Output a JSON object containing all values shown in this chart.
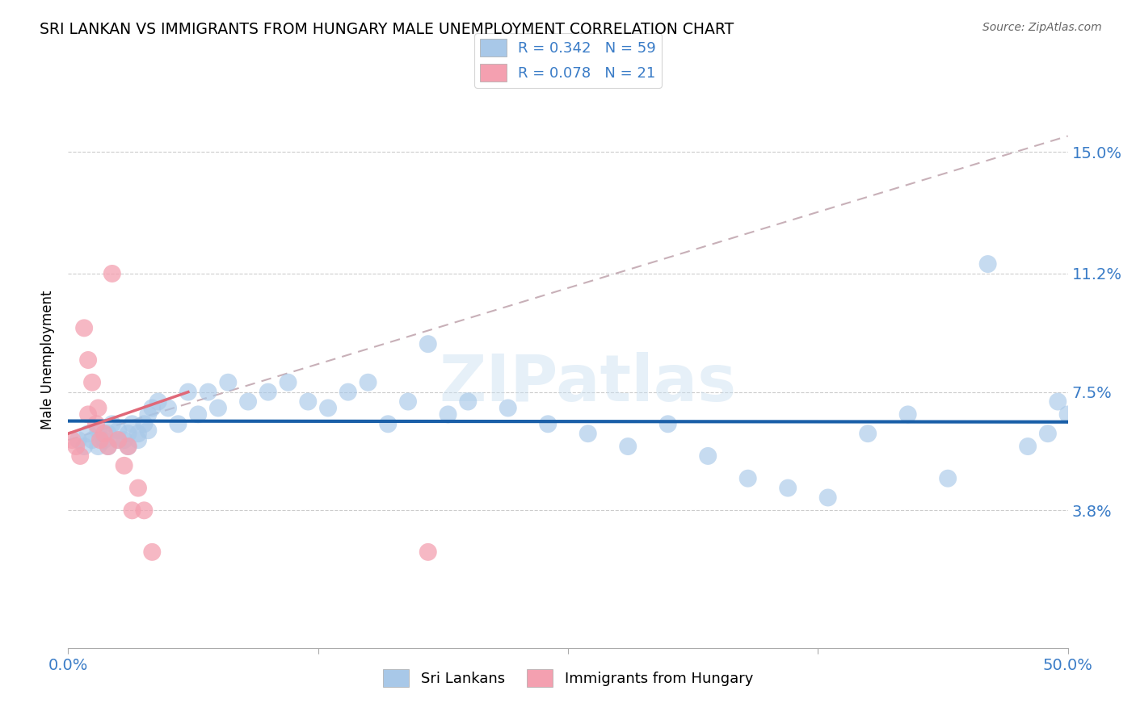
{
  "title": "SRI LANKAN VS IMMIGRANTS FROM HUNGARY MALE UNEMPLOYMENT CORRELATION CHART",
  "source": "Source: ZipAtlas.com",
  "ylabel": "Male Unemployment",
  "xlabel": "",
  "xlim": [
    0.0,
    0.5
  ],
  "ylim": [
    -0.005,
    0.175
  ],
  "yticks": [
    0.038,
    0.075,
    0.112,
    0.15
  ],
  "ytick_labels": [
    "3.8%",
    "7.5%",
    "11.2%",
    "15.0%"
  ],
  "xticks": [
    0.0,
    0.125,
    0.25,
    0.375,
    0.5
  ],
  "xtick_labels": [
    "0.0%",
    "",
    "",
    "",
    "50.0%"
  ],
  "legend_R1": "R = 0.342",
  "legend_N1": "N = 59",
  "legend_R2": "R = 0.078",
  "legend_N2": "N = 21",
  "color_blue": "#a8c8e8",
  "color_pink": "#f4a0b0",
  "color_blue_line": "#1a5fa8",
  "color_pink_line": "#e06878",
  "color_dashed": "#d0a0a8",
  "color_blue_text": "#3a7cc7",
  "color_label_text": "#3a7cc7",
  "watermark": "ZIPatlas",
  "sri_lankans_x": [
    0.005,
    0.008,
    0.01,
    0.012,
    0.015,
    0.015,
    0.018,
    0.02,
    0.02,
    0.022,
    0.025,
    0.025,
    0.028,
    0.03,
    0.03,
    0.032,
    0.035,
    0.035,
    0.038,
    0.04,
    0.04,
    0.042,
    0.045,
    0.05,
    0.055,
    0.06,
    0.065,
    0.07,
    0.075,
    0.08,
    0.09,
    0.1,
    0.11,
    0.12,
    0.13,
    0.14,
    0.15,
    0.16,
    0.17,
    0.18,
    0.19,
    0.2,
    0.22,
    0.24,
    0.26,
    0.28,
    0.3,
    0.32,
    0.34,
    0.36,
    0.38,
    0.4,
    0.42,
    0.44,
    0.46,
    0.48,
    0.49,
    0.495,
    0.5
  ],
  "sri_lankans_y": [
    0.06,
    0.058,
    0.062,
    0.06,
    0.058,
    0.063,
    0.06,
    0.062,
    0.058,
    0.065,
    0.06,
    0.063,
    0.06,
    0.062,
    0.058,
    0.065,
    0.06,
    0.062,
    0.065,
    0.068,
    0.063,
    0.07,
    0.072,
    0.07,
    0.065,
    0.075,
    0.068,
    0.075,
    0.07,
    0.078,
    0.072,
    0.075,
    0.078,
    0.072,
    0.07,
    0.075,
    0.078,
    0.065,
    0.072,
    0.09,
    0.068,
    0.072,
    0.07,
    0.065,
    0.062,
    0.058,
    0.065,
    0.055,
    0.048,
    0.045,
    0.042,
    0.062,
    0.068,
    0.048,
    0.115,
    0.058,
    0.062,
    0.072,
    0.068
  ],
  "hungary_x": [
    0.002,
    0.004,
    0.006,
    0.008,
    0.01,
    0.01,
    0.012,
    0.014,
    0.015,
    0.016,
    0.018,
    0.02,
    0.022,
    0.025,
    0.028,
    0.03,
    0.032,
    0.035,
    0.038,
    0.042,
    0.18
  ],
  "hungary_y": [
    0.06,
    0.058,
    0.055,
    0.095,
    0.085,
    0.068,
    0.078,
    0.065,
    0.07,
    0.06,
    0.062,
    0.058,
    0.112,
    0.06,
    0.052,
    0.058,
    0.038,
    0.045,
    0.038,
    0.025,
    0.025
  ],
  "hungary_line_x0": 0.0,
  "hungary_line_x1": 0.5,
  "hungary_line_y0": 0.062,
  "hungary_line_y1": 0.075,
  "dashed_line_x0": 0.0,
  "dashed_line_x1": 0.5,
  "dashed_line_y0": 0.06,
  "dashed_line_y1": 0.155
}
